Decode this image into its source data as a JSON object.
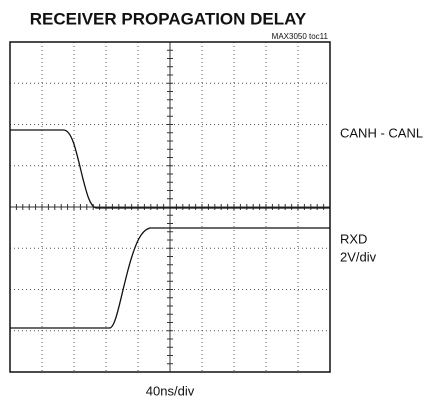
{
  "title": "RECEIVER PROPAGATION DELAY",
  "figure_id": "MAX3050 toc11",
  "trace_labels": [
    "CANH - CANL",
    "RXD"
  ],
  "vertical_scale": "2V/div",
  "time_scale": "40ns/div"
}
